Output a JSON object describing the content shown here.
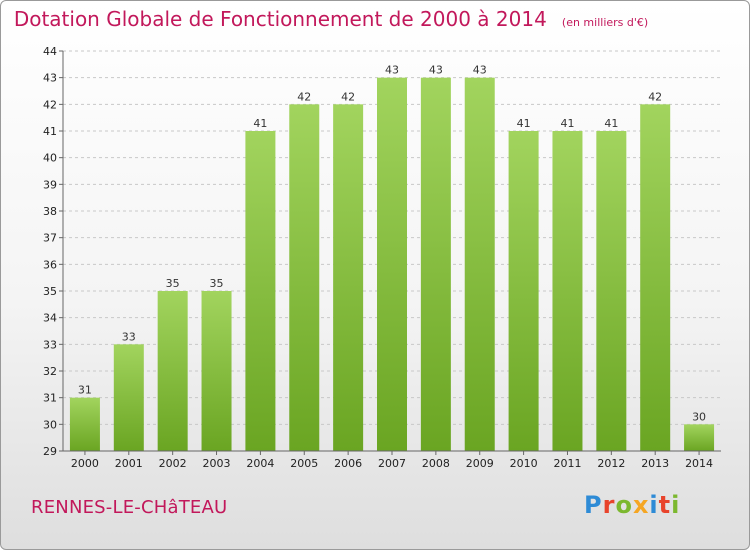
{
  "header": {
    "title": "Dotation Globale de Fonctionnement de 2000 à 2014",
    "subtitle": "(en milliers d'€)"
  },
  "footer": {
    "commune": "RENNES-LE-CHâTEAU",
    "brand": "Proxiti",
    "brand_colors": [
      "#2e8bd6",
      "#e8442c",
      "#7cb82f",
      "#f5a623",
      "#2e8bd6",
      "#e8442c",
      "#7cb82f"
    ]
  },
  "chart_data": {
    "type": "bar",
    "categories": [
      "2000",
      "2001",
      "2002",
      "2003",
      "2004",
      "2005",
      "2006",
      "2007",
      "2008",
      "2009",
      "2010",
      "2011",
      "2012",
      "2013",
      "2014"
    ],
    "values": [
      31,
      33,
      35,
      35,
      41,
      42,
      42,
      43,
      43,
      43,
      41,
      41,
      41,
      42,
      30
    ],
    "title": "Dotation Globale de Fonctionnement de 2000 à 2014",
    "subtitle": "(en milliers d'€)",
    "ylim": [
      29,
      44
    ],
    "yticks": [
      29,
      30,
      31,
      32,
      33,
      34,
      35,
      36,
      37,
      38,
      39,
      40,
      41,
      42,
      43,
      44
    ],
    "grid": true,
    "bar_color": "#7cb82f",
    "bar_color_light": "#a2d45e",
    "label_position": "above"
  }
}
